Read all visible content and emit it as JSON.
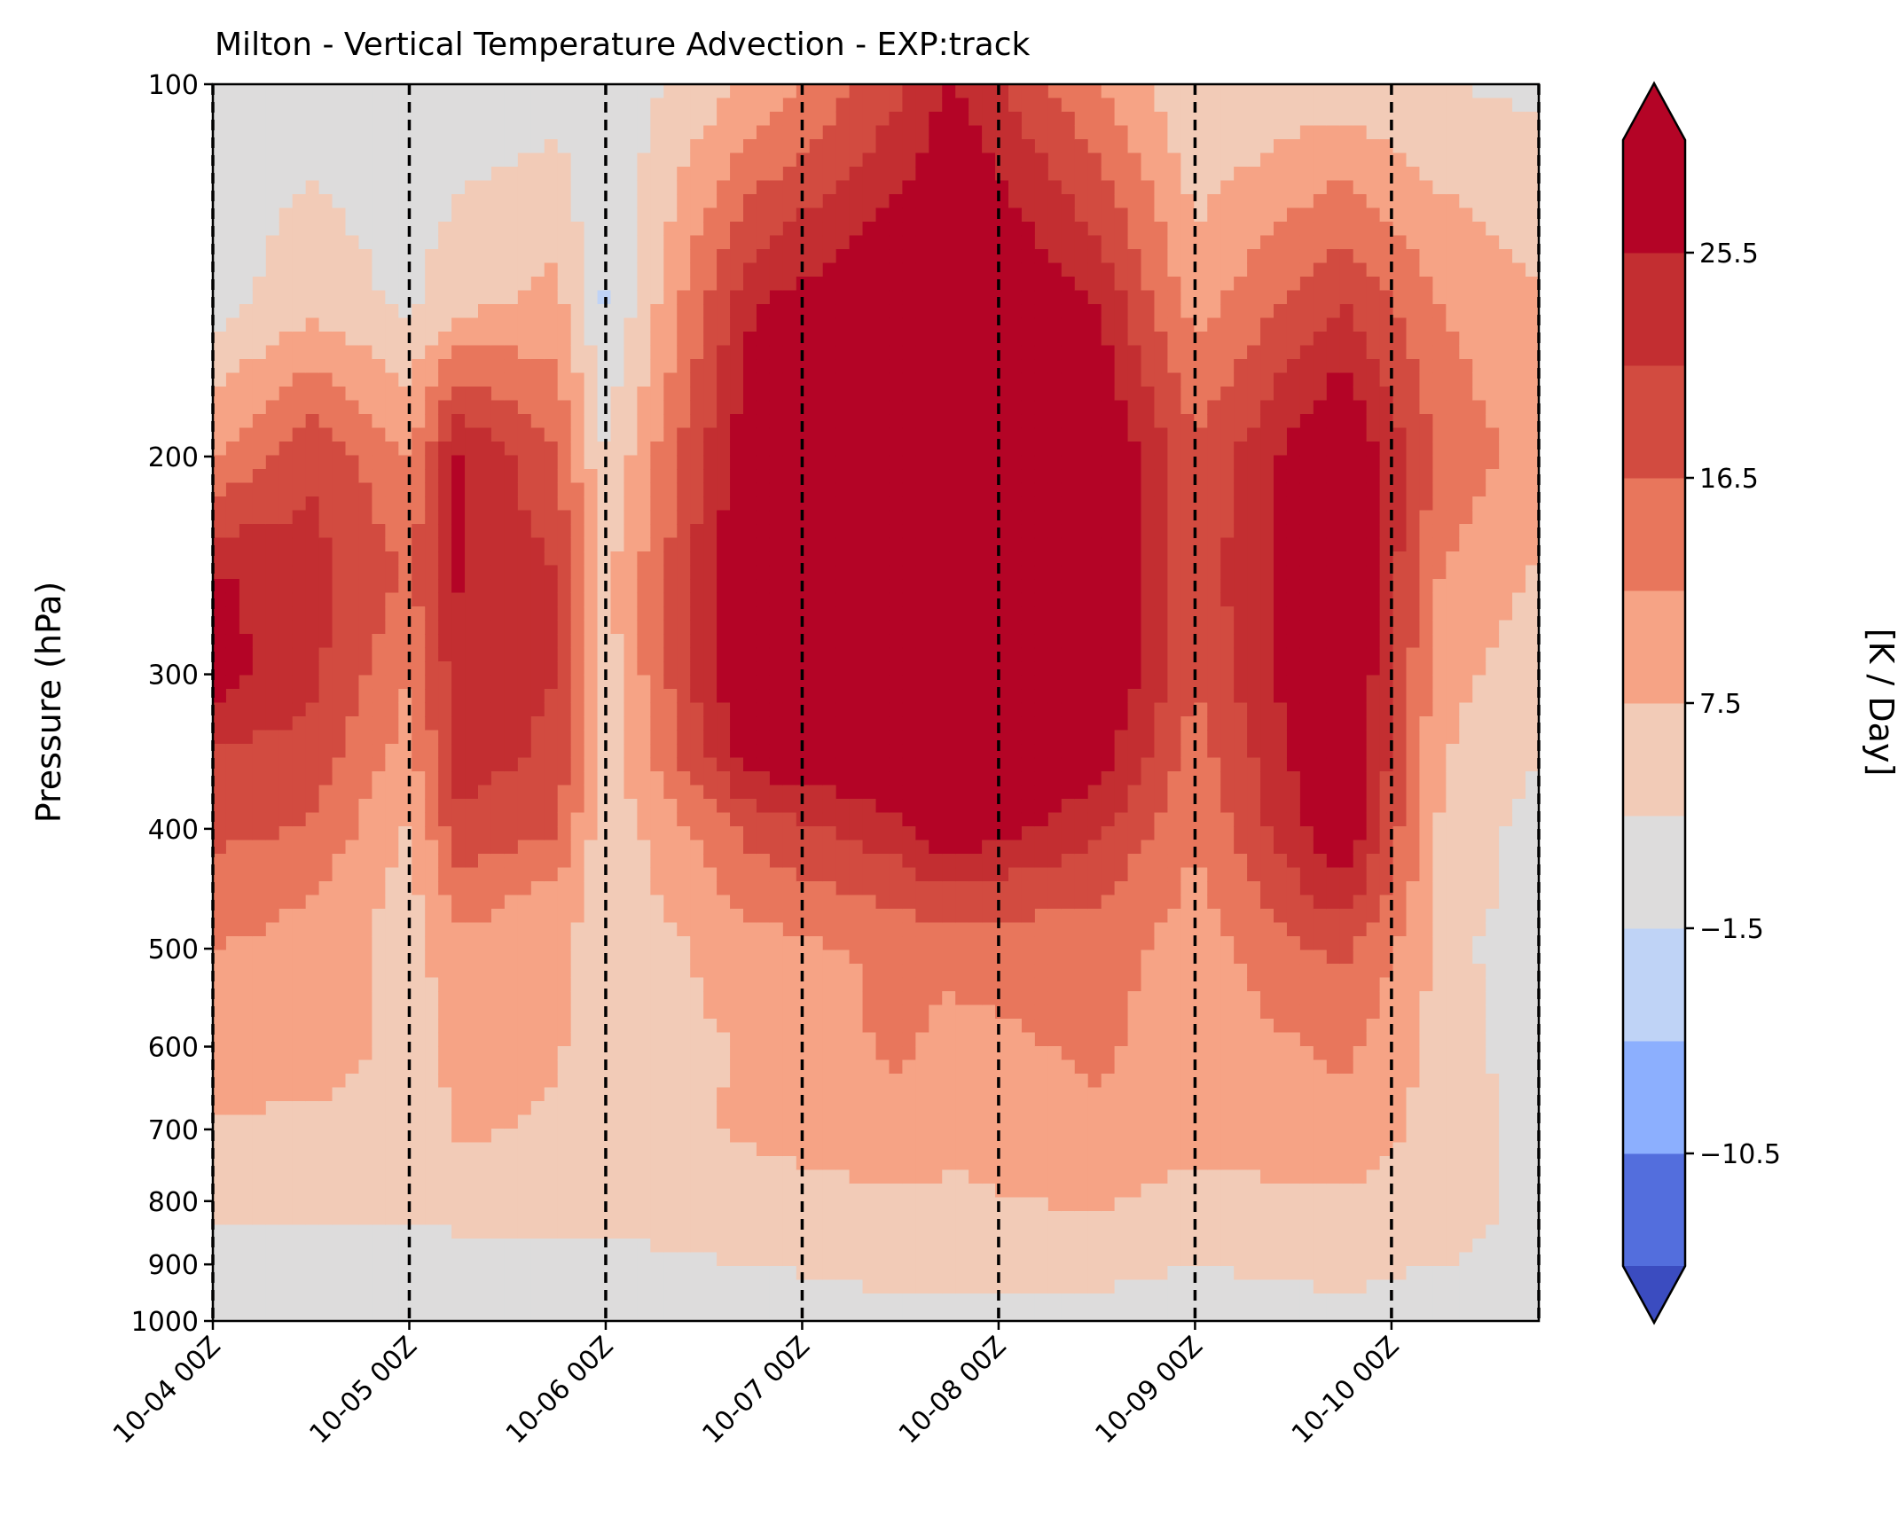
{
  "chart_data": {
    "type": "heatmap",
    "subtype": "filled-contour (time–pressure cross section)",
    "title": "Milton - Vertical Temperature Advection - EXP:track",
    "xlabel": "",
    "ylabel": "Pressure (hPa)",
    "colorbar_label": "[K / Day]",
    "y_scale": "log",
    "y_inverted": true,
    "ylim": [
      1000,
      100
    ],
    "yticks": [
      100,
      200,
      300,
      400,
      500,
      600,
      700,
      800,
      900,
      1000
    ],
    "xlim": [
      "10-04 00Z",
      "10-10 18Z"
    ],
    "xticks": [
      "10-04 00Z",
      "10-05 00Z",
      "10-06 00Z",
      "10-07 00Z",
      "10-08 00Z",
      "10-09 00Z",
      "10-10 00Z"
    ],
    "vlines_dashed": [
      "10-04 00Z",
      "10-05 00Z",
      "10-06 00Z",
      "10-07 00Z",
      "10-08 00Z",
      "10-09 00Z",
      "10-10 00Z",
      "10-10 18Z"
    ],
    "colorbar": {
      "extend": "both",
      "levels": [
        -15,
        -10.5,
        -6,
        -1.5,
        3,
        7.5,
        12,
        16.5,
        21,
        25.5,
        30
      ],
      "tick_labels": [
        "25.5",
        "16.5",
        "7.5",
        "−1.5",
        "−10.5"
      ],
      "tick_values": [
        25.5,
        16.5,
        7.5,
        -1.5,
        -10.5
      ],
      "under_color": "#3b4cc0",
      "over_color": "#b40426",
      "colors": [
        "#536edd",
        "#8caffe",
        "#bfd3f6",
        "#dddcdc",
        "#f2cbb7",
        "#f6a385",
        "#e8765c",
        "#d24b40",
        "#c32e31",
        "#b40426"
      ],
      "colormap": "coolwarm"
    },
    "grid": false,
    "legend": "none",
    "series": [
      {
        "x": "10-04 00Z",
        "pressure": [
          100,
          150,
          200,
          250,
          300,
          350,
          400,
          450,
          500,
          600,
          700,
          800,
          900,
          1000
        ],
        "values": [
          0.5,
          1,
          12,
          26,
          28,
          20,
          18,
          14,
          12,
          10,
          7,
          4,
          1,
          0
        ]
      },
      {
        "x": "10-04 12Z",
        "pressure": [
          100,
          150,
          200,
          250,
          300,
          350,
          400,
          450,
          500,
          600,
          700,
          800,
          900,
          1000
        ],
        "values": [
          0.5,
          6,
          20,
          23,
          22,
          19,
          16,
          12,
          11,
          11,
          6,
          4,
          1,
          -1
        ]
      },
      {
        "x": "10-05 00Z",
        "pressure": [
          100,
          150,
          200,
          250,
          300,
          350,
          400,
          450,
          500,
          600,
          700,
          800,
          900,
          1000
        ],
        "values": [
          0,
          2,
          12,
          16,
          12,
          10,
          7,
          6,
          5,
          5,
          5,
          4,
          1,
          0
        ]
      },
      {
        "x": "10-05 06Z",
        "pressure": [
          100,
          150,
          200,
          250,
          300,
          350,
          400,
          450,
          500,
          600,
          700,
          800,
          900,
          1000
        ],
        "values": [
          0,
          6,
          26,
          26,
          24,
          23,
          20,
          14,
          11,
          9,
          8,
          5,
          1,
          -1
        ]
      },
      {
        "x": "10-05 18Z",
        "pressure": [
          100,
          150,
          200,
          250,
          300,
          350,
          400,
          450,
          500,
          600,
          700,
          800,
          900,
          1000
        ],
        "values": [
          1,
          9,
          17,
          21,
          21,
          20,
          17,
          11,
          9,
          8,
          7,
          5,
          2,
          0
        ]
      },
      {
        "x": "10-06 00Z",
        "pressure": [
          100,
          150,
          200,
          250,
          300,
          350,
          400,
          450,
          500,
          600,
          700,
          800,
          900,
          1000
        ],
        "values": [
          0,
          -2,
          3,
          6,
          5,
          5,
          4,
          4,
          4,
          5,
          6,
          4,
          2,
          0
        ]
      },
      {
        "x": "10-06 18Z",
        "pressure": [
          100,
          150,
          200,
          250,
          300,
          350,
          400,
          450,
          500,
          600,
          700,
          800,
          900,
          1000
        ],
        "values": [
          8,
          25,
          30,
          32,
          32,
          28,
          18,
          14,
          10,
          8,
          8,
          6,
          3,
          1
        ]
      },
      {
        "x": "10-07 12Z",
        "pressure": [
          100,
          150,
          200,
          250,
          300,
          350,
          400,
          450,
          500,
          600,
          700,
          800,
          900,
          1000
        ],
        "values": [
          20,
          31,
          33,
          33,
          33,
          31,
          24,
          18,
          13,
          13,
          10,
          7,
          4,
          2
        ]
      },
      {
        "x": "10-07 18Z",
        "pressure": [
          100,
          150,
          200,
          250,
          300,
          350,
          400,
          450,
          500,
          600,
          700,
          800,
          900,
          1000
        ],
        "values": [
          26,
          34,
          34,
          34,
          33,
          32,
          30,
          20,
          14,
          10,
          8,
          7,
          4,
          2
        ]
      },
      {
        "x": "10-08 12Z",
        "pressure": [
          100,
          150,
          200,
          250,
          300,
          350,
          400,
          450,
          500,
          600,
          700,
          800,
          900,
          1000
        ],
        "values": [
          12,
          25,
          32,
          32,
          32,
          28,
          22,
          17,
          14,
          13,
          11,
          8,
          4,
          2
        ]
      },
      {
        "x": "10-09 00Z",
        "pressure": [
          100,
          150,
          200,
          250,
          300,
          350,
          400,
          450,
          500,
          600,
          700,
          800,
          900,
          1000
        ],
        "values": [
          3,
          10,
          17,
          18,
          17,
          14,
          12,
          11,
          10,
          9,
          9,
          6,
          3,
          1
        ]
      },
      {
        "x": "10-09 18Z",
        "pressure": [
          100,
          150,
          200,
          250,
          300,
          350,
          400,
          450,
          500,
          600,
          700,
          800,
          900,
          1000
        ],
        "values": [
          5,
          21,
          32,
          33,
          33,
          32,
          30,
          24,
          18,
          13,
          10,
          7,
          4,
          2
        ]
      },
      {
        "x": "10-10 06Z",
        "pressure": [
          100,
          150,
          200,
          250,
          300,
          350,
          400,
          450,
          500,
          600,
          700,
          800,
          900,
          1000
        ],
        "values": [
          3,
          12,
          15,
          12,
          9,
          8,
          7,
          7,
          6,
          6,
          6,
          5,
          3,
          1
        ]
      },
      {
        "x": "10-10 18Z",
        "pressure": [
          100,
          150,
          200,
          250,
          300,
          350,
          400,
          450,
          500,
          600,
          700,
          800,
          900,
          1000
        ],
        "values": [
          2,
          8,
          10,
          7,
          5,
          3,
          1,
          0,
          -2,
          0,
          1,
          2,
          2,
          1
        ]
      }
    ]
  }
}
